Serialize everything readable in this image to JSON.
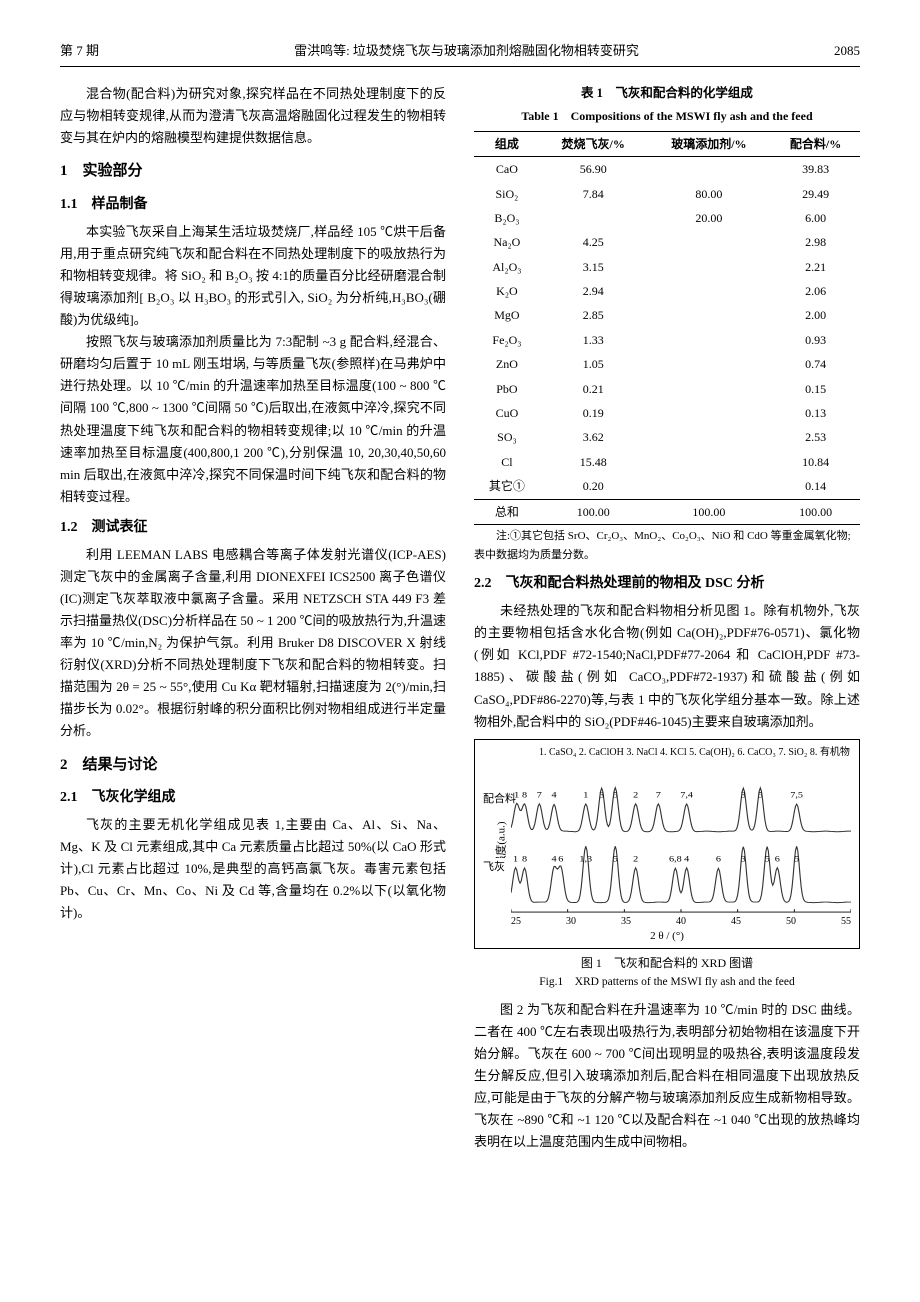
{
  "header": {
    "issue": "第 7 期",
    "running_title": "雷洪鸣等: 垃圾焚烧飞灰与玻璃添加剂熔融固化物相转变研究",
    "page_no": "2085"
  },
  "intro_para": "混合物(配合料)为研究对象,探究样品在不同热处理制度下的反应与物相转变规律,从而为澄清飞灰高温熔融固化过程发生的物相转变与其在炉内的熔融模型构建提供数据信息。",
  "sec1": "1　实验部分",
  "sec1_1": "1.1　样品制备",
  "p1_1a": "本实验飞灰采自上海某生活垃圾焚烧厂,样品经 105 ℃烘干后备用,用于重点研究纯飞灰和配合料在不同热处理制度下的吸放热行为和物相转变规律。将 SiO₂ 和 B₂O₃ 按 4:1的质量百分比经研磨混合制得玻璃添加剂[ B₂O₃ 以 H₃BO₃ 的形式引入, SiO₂ 为分析纯,H₃BO₃(硼酸)为优级纯]。",
  "p1_1b": "按照飞灰与玻璃添加剂质量比为 7:3配制 ~3 g 配合料,经混合、研磨均匀后置于 10 mL 刚玉坩埚, 与等质量飞灰(参照样)在马弗炉中进行热处理。以 10 ℃/min 的升温速率加热至目标温度(100 ~ 800 ℃间隔 100 ℃,800 ~ 1300 ℃间隔 50 ℃)后取出,在液氮中淬冷,探究不同热处理温度下纯飞灰和配合料的物相转变规律;以 10 ℃/min 的升温速率加热至目标温度(400,800,1 200 ℃),分别保温 10, 20,30,40,50,60 min 后取出,在液氮中淬冷,探究不同保温时间下纯飞灰和配合料的物相转变过程。",
  "sec1_2": "1.2　测试表征",
  "p1_2": "利用 LEEMAN LABS 电感耦合等离子体发射光谱仪(ICP-AES)测定飞灰中的金属离子含量,利用 DIONEXFEI ICS2500 离子色谱仪(IC)测定飞灰萃取液中氯离子含量。采用 NETZSCH STA 449 F3 差示扫描量热仪(DSC)分析样品在 50 ~ 1 200 ℃间的吸放热行为,升温速率为 10 ℃/min,N₂ 为保护气氛。利用 Bruker D8 DISCOVER X 射线衍射仪(XRD)分析不同热处理制度下飞灰和配合料的物相转变。扫描范围为 2θ = 25 ~ 55°,使用 Cu Kα 靶材辐射,扫描速度为 2(°)/min,扫描步长为 0.02°。根据衍射峰的积分面积比例对物相组成进行半定量分析。",
  "sec2": "2　结果与讨论",
  "sec2_1": "2.1　飞灰化学组成",
  "p2_1": "飞灰的主要无机化学组成见表 1,主要由 Ca、Al、Si、Na、Mg、K 及 Cl 元素组成,其中 Ca 元素质量占比超过 50%(以 CaO 形式计),Cl 元素占比超过 10%,是典型的高钙高氯飞灰。毒害元素包括 Pb、Cu、Cr、Mn、Co、Ni 及 Cd 等,含量均在 0.2%以下(以氧化物计)。",
  "table1": {
    "title_cn": "表 1　飞灰和配合料的化学组成",
    "title_en": "Table 1　Compositions of the MSWI fly ash and the feed",
    "columns": [
      "组成",
      "焚烧飞灰/%",
      "玻璃添加剂/%",
      "配合料/%"
    ],
    "rows": [
      [
        "CaO",
        "56.90",
        "",
        "39.83"
      ],
      [
        "SiO₂",
        "7.84",
        "80.00",
        "29.49"
      ],
      [
        "B₂O₃",
        "",
        "20.00",
        "6.00"
      ],
      [
        "Na₂O",
        "4.25",
        "",
        "2.98"
      ],
      [
        "Al₂O₃",
        "3.15",
        "",
        "2.21"
      ],
      [
        "K₂O",
        "2.94",
        "",
        "2.06"
      ],
      [
        "MgO",
        "2.85",
        "",
        "2.00"
      ],
      [
        "Fe₂O₃",
        "1.33",
        "",
        "0.93"
      ],
      [
        "ZnO",
        "1.05",
        "",
        "0.74"
      ],
      [
        "PbO",
        "0.21",
        "",
        "0.15"
      ],
      [
        "CuO",
        "0.19",
        "",
        "0.13"
      ],
      [
        "SO₃",
        "3.62",
        "",
        "2.53"
      ],
      [
        "Cl",
        "15.48",
        "",
        "10.84"
      ],
      [
        "其它①",
        "0.20",
        "",
        "0.14"
      ]
    ],
    "total_row": [
      "总和",
      "100.00",
      "100.00",
      "100.00"
    ],
    "note": "注:①其它包括 SrO、Cr₂O₃、MnO₂、Co₂O₃、NiO 和 CdO 等重金属氧化物;表中数据均为质量分数。"
  },
  "sec2_2": "2.2　飞灰和配合料热处理前的物相及 DSC 分析",
  "p2_2a": "未经热处理的飞灰和配合料物相分析见图 1。除有机物外,飞灰的主要物相包括含水化合物(例如 Ca(OH)₂,PDF#76-0571)、氯化物(例如 KCl,PDF #72-1540;NaCl,PDF#77-2064 和 CaClOH,PDF #73-1885)、碳酸盐(例如 CaCO₃,PDF#72-1937)和硫酸盐(例如 CaSO₄,PDF#86-2270)等,与表 1 中的飞灰化学组分基本一致。除上述物相外,配合料中的 SiO₂(PDF#46-1045)主要来自玻璃添加剂。",
  "fig1": {
    "type": "xrd-stacked-line",
    "legend_items": [
      "1. CaSO₄",
      "2. CaClOH",
      "3. NaCl",
      "4. KCl",
      "5. Ca(OH)₂",
      "6. CaCO₃",
      "7. SiO₂",
      "8. 有机物"
    ],
    "legend_text": "1. CaSO₄  2. CaClOH  3. NaCl  4. KCl\n5. Ca(OH)₂  6. CaCO₃  7. SiO₂  8. 有机物",
    "sample_labels": [
      "配合料",
      "飞灰"
    ],
    "xlabel": "2 θ / (°)",
    "ylabel": "强度(a.u.)",
    "xlim": [
      25,
      55
    ],
    "xticks": [
      25,
      30,
      35,
      40,
      45,
      50,
      55
    ],
    "peak_annotations_top": [
      {
        "x": 25.5,
        "label": "1"
      },
      {
        "x": 26.2,
        "label": "8"
      },
      {
        "x": 27.5,
        "label": "7"
      },
      {
        "x": 28.8,
        "label": "4"
      },
      {
        "x": 31.6,
        "label": "1"
      },
      {
        "x": 33.0,
        "label": "3"
      },
      {
        "x": 34.2,
        "label": "5"
      },
      {
        "x": 36.0,
        "label": "2"
      },
      {
        "x": 38.0,
        "label": "7"
      },
      {
        "x": 40.5,
        "label": "7,4"
      },
      {
        "x": 45.5,
        "label": "3"
      },
      {
        "x": 47.0,
        "label": "5"
      },
      {
        "x": 50.2,
        "label": "7,5"
      }
    ],
    "peak_annotations_bottom": [
      {
        "x": 25.4,
        "label": "1"
      },
      {
        "x": 26.2,
        "label": "8"
      },
      {
        "x": 28.8,
        "label": "4"
      },
      {
        "x": 29.4,
        "label": "6"
      },
      {
        "x": 31.6,
        "label": "1,3"
      },
      {
        "x": 34.2,
        "label": "5"
      },
      {
        "x": 36.0,
        "label": "2"
      },
      {
        "x": 39.5,
        "label": "6,8"
      },
      {
        "x": 40.5,
        "label": "4"
      },
      {
        "x": 43.3,
        "label": "6"
      },
      {
        "x": 45.5,
        "label": "3"
      },
      {
        "x": 47.6,
        "label": "5"
      },
      {
        "x": 48.5,
        "label": "6"
      },
      {
        "x": 50.2,
        "label": "5"
      }
    ],
    "line_color": "#555555",
    "caption_cn": "图 1　飞灰和配合料的 XRD 图谱",
    "caption_en": "Fig.1　XRD patterns of the MSWI fly ash and the feed"
  },
  "p2_2b": "图 2 为飞灰和配合料在升温速率为 10 ℃/min 时的 DSC 曲线。二者在 400 ℃左右表现出吸热行为,表明部分初始物相在该温度下开始分解。飞灰在 600 ~ 700 ℃间出现明显的吸热谷,表明该温度段发生分解反应,但引入玻璃添加剂后,配合料在相同温度下出现放热反应,可能是由于飞灰的分解产物与玻璃添加剂反应生成新物相导致。飞灰在 ~890 ℃和 ~1 120 ℃以及配合料在 ~1 040 ℃出现的放热峰均表明在以上温度范围内生成中间物相。"
}
